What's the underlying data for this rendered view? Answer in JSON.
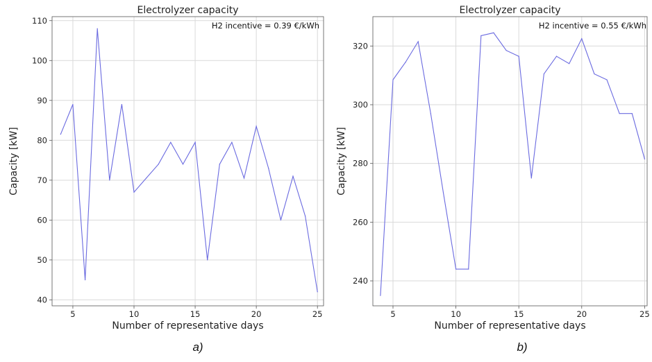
{
  "chart_data": [
    {
      "type": "line",
      "title": "Electrolyzer capacity",
      "xlabel": "Number of representative days",
      "ylabel": "Capacity [kW]",
      "annotation": "H2 incentive = 0.39 €/kWh",
      "caption": "a)",
      "xlim": [
        3.3,
        25.5
      ],
      "ylim": [
        38.5,
        111
      ],
      "xticks": [
        5,
        10,
        15,
        20,
        25
      ],
      "yticks": [
        40,
        50,
        60,
        70,
        80,
        90,
        100,
        110
      ],
      "grid": true,
      "color": "#6a6ae0",
      "x": [
        4,
        5,
        6,
        7,
        8,
        9,
        10,
        11,
        12,
        13,
        14,
        15,
        16,
        17,
        18,
        19,
        20,
        21,
        22,
        23,
        24,
        25
      ],
      "values": [
        81.5,
        89,
        45,
        108,
        70,
        89,
        67,
        70.5,
        74,
        79.5,
        74,
        79.5,
        50,
        74,
        79.5,
        70.5,
        83.5,
        73,
        60,
        71,
        61,
        42
      ]
    },
    {
      "type": "line",
      "title": "Electrolyzer capacity",
      "xlabel": "Number of representative days",
      "ylabel": "Capacity [kW]",
      "annotation": "H2 incentive = 0.55 €/kWh",
      "caption": "b)",
      "xlim": [
        3.4,
        25.2
      ],
      "ylim": [
        231.5,
        330
      ],
      "xticks": [
        5,
        10,
        15,
        20,
        25
      ],
      "yticks": [
        240,
        260,
        280,
        300,
        320
      ],
      "grid": true,
      "color": "#6a6ae0",
      "x": [
        4,
        5,
        6,
        7,
        8,
        9,
        10,
        11,
        12,
        13,
        14,
        15,
        16,
        17,
        18,
        19,
        20,
        21,
        22,
        23,
        24,
        25
      ],
      "values": [
        235,
        308.5,
        314.5,
        321.5,
        297,
        270,
        244,
        244,
        323.5,
        324.5,
        318.5,
        316.5,
        275,
        310.5,
        316.5,
        314,
        322.5,
        310.5,
        308.5,
        297,
        297,
        281.5
      ]
    }
  ]
}
